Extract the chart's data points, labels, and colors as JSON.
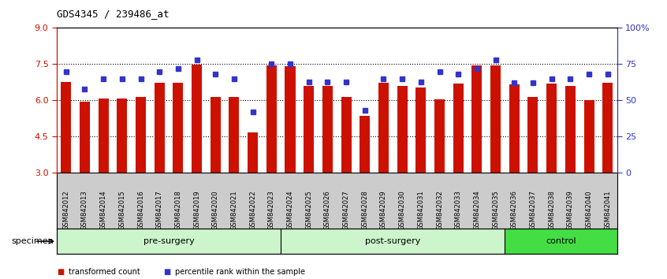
{
  "title": "GDS4345 / 239486_at",
  "samples": [
    "GSM842012",
    "GSM842013",
    "GSM842014",
    "GSM842015",
    "GSM842016",
    "GSM842017",
    "GSM842018",
    "GSM842019",
    "GSM842020",
    "GSM842021",
    "GSM842022",
    "GSM842023",
    "GSM842024",
    "GSM842025",
    "GSM842026",
    "GSM842027",
    "GSM842028",
    "GSM842029",
    "GSM842030",
    "GSM842031",
    "GSM842032",
    "GSM842033",
    "GSM842034",
    "GSM842035",
    "GSM842036",
    "GSM842037",
    "GSM842038",
    "GSM842039",
    "GSM842040",
    "GSM842041"
  ],
  "bar_values": [
    6.75,
    5.95,
    6.08,
    6.08,
    6.15,
    6.72,
    6.72,
    7.48,
    6.15,
    6.15,
    4.68,
    7.45,
    7.42,
    6.6,
    6.6,
    6.15,
    5.35,
    6.72,
    6.6,
    6.55,
    6.05,
    6.7,
    7.45,
    7.45,
    6.65,
    6.15,
    6.7,
    6.6,
    6.02,
    6.72
  ],
  "percentile_values": [
    70,
    58,
    65,
    65,
    65,
    70,
    72,
    78,
    68,
    65,
    42,
    75,
    75,
    63,
    63,
    63,
    43,
    65,
    65,
    63,
    70,
    68,
    72,
    78,
    62,
    62,
    65,
    65,
    68,
    68
  ],
  "ylim": [
    3,
    9
  ],
  "yticks": [
    3,
    4.5,
    6,
    7.5,
    9
  ],
  "right_yticks": [
    0,
    25,
    50,
    75,
    100
  ],
  "right_ylabels": [
    "0",
    "25",
    "50",
    "75",
    "100%"
  ],
  "bar_color": "#cc1100",
  "dot_color": "#3333cc",
  "bar_bottom": 3,
  "groups": [
    {
      "label": "pre-surgery",
      "start": 0,
      "end": 11
    },
    {
      "label": "post-surgery",
      "start": 12,
      "end": 23
    },
    {
      "label": "control",
      "start": 24,
      "end": 29
    }
  ],
  "group_color_light": "#ccf5cc",
  "group_color_dark": "#44dd44",
  "specimen_label": "specimen",
  "legend_items": [
    {
      "label": "transformed count",
      "color": "#cc1100"
    },
    {
      "label": "percentile rank within the sample",
      "color": "#3333cc"
    }
  ],
  "xtick_bg_color": "#cccccc",
  "fig_width": 8.46,
  "fig_height": 3.54,
  "dpi": 100
}
